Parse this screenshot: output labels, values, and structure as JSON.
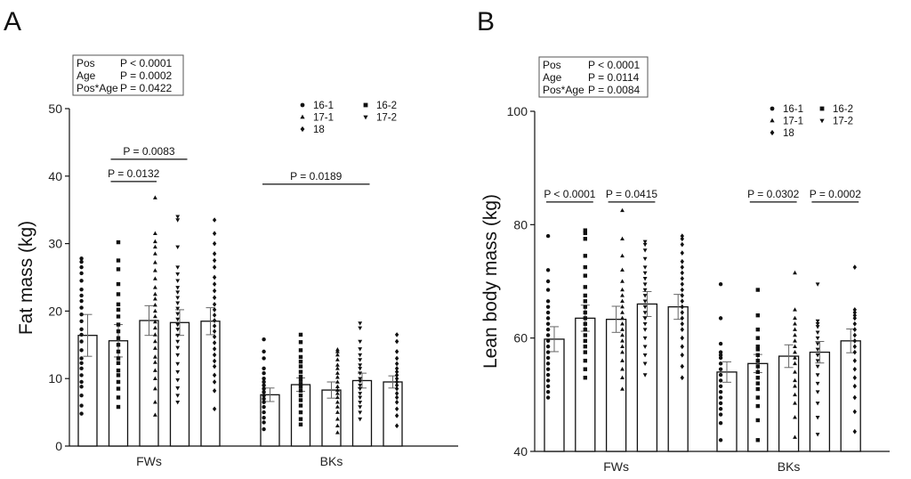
{
  "chart_data": [
    {
      "type": "bar",
      "panel_label": "A",
      "ylabel": "Fat mass (kg)",
      "ylim": [
        0,
        50
      ],
      "yticks": [
        "0",
        "10",
        "20",
        "30",
        "40",
        "50"
      ],
      "categories": [
        "FWs",
        "BKs"
      ],
      "legend": [
        "16-1",
        "16-2",
        "17-1",
        "17-2",
        "18"
      ],
      "legend_placement": "top-right",
      "stats_box": [
        {
          "label": "Pos",
          "value": "P < 0.0001"
        },
        {
          "label": "Age",
          "value": "P = 0.0002"
        },
        {
          "label": "Pos*Age",
          "value": "P = 0.0422"
        }
      ],
      "groups": [
        {
          "category": "FWs",
          "bars": [
            {
              "series": "16-1",
              "mean": 16.4,
              "sem": 3.1,
              "points": [
                4.8,
                6.0,
                7.5,
                8.8,
                9.5,
                10.5,
                11.5,
                12.3,
                13.0,
                14.2,
                15.5,
                16.5,
                17.3,
                18.5,
                19.5,
                20.5,
                21.5,
                22.3,
                23.2,
                24.5,
                25.6,
                26.5,
                27.3,
                27.8
              ]
            },
            {
              "series": "16-2",
              "mean": 15.6,
              "sem": 2.4,
              "points": [
                5.8,
                7.2,
                8.5,
                9.5,
                10.5,
                11.2,
                12.3,
                13.0,
                14.0,
                15.0,
                16.0,
                17.0,
                18.0,
                19.2,
                20.2,
                21.0,
                22.5,
                24.0,
                26.2,
                27.5,
                30.2
              ]
            },
            {
              "series": "17-1",
              "mean": 18.6,
              "sem": 2.2,
              "points": [
                4.6,
                6.5,
                8.5,
                10.0,
                11.2,
                12.4,
                13.2,
                14.5,
                15.5,
                16.5,
                17.5,
                18.4,
                19.2,
                20.0,
                20.9,
                21.8,
                22.5,
                23.5,
                24.8,
                26.0,
                27.2,
                28.5,
                29.5,
                30.3,
                31.5,
                36.8
              ]
            },
            {
              "series": "17-2",
              "mean": 18.3,
              "sem": 1.9,
              "points": [
                6.5,
                7.5,
                8.6,
                9.8,
                11.0,
                12.2,
                13.5,
                14.6,
                15.5,
                16.4,
                17.3,
                18.0,
                18.8,
                19.6,
                20.4,
                21.2,
                22.0,
                22.8,
                23.5,
                24.5,
                25.5,
                26.5,
                29.5,
                33.5,
                34.0
              ]
            },
            {
              "series": "18",
              "mean": 18.5,
              "sem": 2.0,
              "points": [
                5.5,
                8.2,
                9.5,
                10.5,
                11.8,
                12.6,
                13.5,
                14.4,
                15.3,
                16.2,
                17.0,
                17.8,
                18.6,
                19.4,
                20.2,
                21.0,
                22.0,
                23.0,
                24.0,
                25.0,
                26.5,
                27.5,
                28.5,
                30.0,
                31.5,
                33.5
              ]
            }
          ]
        },
        {
          "category": "BKs",
          "bars": [
            {
              "series": "16-1",
              "mean": 7.6,
              "sem": 1.0,
              "points": [
                2.5,
                3.5,
                4.2,
                5.0,
                5.8,
                6.5,
                7.0,
                7.5,
                8.0,
                8.5,
                9.0,
                9.5,
                10.0,
                10.8,
                11.5,
                13.0,
                14.0,
                15.8
              ]
            },
            {
              "series": "16-2",
              "mean": 9.1,
              "sem": 1.0,
              "points": [
                3.2,
                4.0,
                5.0,
                6.0,
                6.8,
                7.5,
                8.2,
                8.8,
                9.2,
                9.8,
                10.3,
                11.0,
                11.8,
                12.5,
                13.2,
                14.2,
                15.4,
                16.5
              ]
            },
            {
              "series": "17-1",
              "mean": 8.3,
              "sem": 1.2,
              "points": [
                2.0,
                3.0,
                4.0,
                5.0,
                5.8,
                6.5,
                7.2,
                7.8,
                8.3,
                8.8,
                9.5,
                10.2,
                10.8,
                11.5,
                12.0,
                12.8,
                13.5,
                14.0,
                14.3
              ]
            },
            {
              "series": "17-2",
              "mean": 9.7,
              "sem": 1.1,
              "points": [
                4.0,
                5.0,
                5.8,
                6.5,
                7.2,
                7.8,
                8.5,
                9.0,
                9.6,
                10.0,
                10.8,
                11.5,
                12.0,
                12.8,
                13.5,
                14.4,
                15.5,
                17.5,
                18.2
              ]
            },
            {
              "series": "18",
              "mean": 9.5,
              "sem": 0.9,
              "points": [
                3.0,
                4.5,
                5.5,
                6.5,
                7.2,
                7.8,
                8.5,
                9.0,
                9.5,
                10.0,
                10.5,
                11.0,
                11.5,
                12.2,
                13.0,
                14.0,
                15.5,
                16.5
              ]
            }
          ]
        }
      ],
      "comparisons": [
        {
          "category": "FWs",
          "from": 1,
          "to": 2,
          "y": 39.2,
          "label": "P = 0.0132"
        },
        {
          "category": "FWs",
          "from": 1,
          "to": 3,
          "y": 42.5,
          "label": "P = 0.0083"
        },
        {
          "category": "BKs",
          "from": 0,
          "to": 3,
          "y": 38.8,
          "label": "P = 0.0189"
        }
      ]
    },
    {
      "type": "bar",
      "panel_label": "B",
      "ylabel": "Lean body mass (kg)",
      "ylim": [
        40,
        100
      ],
      "yticks": [
        "40",
        "60",
        "80",
        "100"
      ],
      "categories": [
        "FWs",
        "BKs"
      ],
      "legend": [
        "16-1",
        "16-2",
        "17-1",
        "17-2",
        "18"
      ],
      "legend_placement": "top-right",
      "stats_box": [
        {
          "label": "Pos",
          "value": "P < 0.0001"
        },
        {
          "label": "Age",
          "value": "P = 0.0114"
        },
        {
          "label": "Pos*Age",
          "value": "P = 0.0084"
        }
      ],
      "groups": [
        {
          "category": "FWs",
          "bars": [
            {
              "series": "16-1",
              "mean": 59.8,
              "sem": 2.2,
              "points": [
                49.5,
                50.5,
                51.5,
                52.5,
                53.5,
                54.5,
                55.5,
                56.5,
                57.5,
                58.5,
                59.5,
                60.5,
                61.5,
                62.5,
                63.5,
                64.5,
                65.5,
                66.5,
                68.5,
                70.0,
                72.0,
                78.0
              ]
            },
            {
              "series": "16-2",
              "mean": 63.5,
              "sem": 2.3,
              "points": [
                53.0,
                54.5,
                56.0,
                57.5,
                58.5,
                59.5,
                60.5,
                61.5,
                62.5,
                63.5,
                64.5,
                65.5,
                66.5,
                67.5,
                69.0,
                71.0,
                72.5,
                74.5,
                77.5,
                78.5,
                79.0
              ]
            },
            {
              "series": "17-1",
              "mean": 63.3,
              "sem": 2.3,
              "points": [
                51.0,
                53.0,
                54.5,
                56.0,
                57.5,
                58.5,
                59.5,
                60.5,
                61.5,
                62.5,
                63.5,
                64.5,
                65.5,
                66.5,
                67.5,
                68.5,
                70.0,
                72.0,
                74.5,
                77.5,
                82.5
              ]
            },
            {
              "series": "17-2",
              "mean": 66.0,
              "sem": 2.2,
              "points": [
                53.5,
                55.5,
                57.0,
                58.5,
                60.0,
                61.5,
                62.5,
                63.5,
                64.5,
                65.5,
                66.5,
                67.5,
                68.5,
                69.5,
                70.5,
                71.5,
                72.5,
                74.0,
                75.5,
                76.5,
                77.0
              ]
            },
            {
              "series": "18",
              "mean": 65.5,
              "sem": 2.2,
              "points": [
                53.0,
                55.0,
                57.0,
                58.5,
                60.0,
                61.5,
                62.5,
                63.5,
                64.5,
                65.5,
                66.5,
                67.5,
                68.5,
                69.5,
                70.5,
                71.5,
                72.5,
                73.5,
                75.0,
                76.5,
                77.5,
                78.0
              ]
            }
          ]
        },
        {
          "category": "BKs",
          "bars": [
            {
              "series": "16-1",
              "mean": 54.0,
              "sem": 1.8,
              "points": [
                42.0,
                45.0,
                46.5,
                47.5,
                48.5,
                49.5,
                50.5,
                51.5,
                52.5,
                53.5,
                54.5,
                55.5,
                56.5,
                57.0,
                57.5,
                59.0,
                63.5,
                69.5
              ]
            },
            {
              "series": "16-2",
              "mean": 55.5,
              "sem": 1.6,
              "points": [
                42.0,
                45.5,
                48.0,
                49.5,
                51.0,
                52.0,
                53.0,
                54.0,
                55.0,
                56.0,
                57.0,
                58.0,
                58.5,
                60.0,
                61.5,
                64.0,
                68.5
              ]
            },
            {
              "series": "17-1",
              "mean": 56.8,
              "sem": 2.0,
              "points": [
                42.5,
                46.0,
                48.5,
                50.0,
                51.5,
                52.5,
                54.0,
                55.5,
                56.5,
                57.5,
                58.5,
                59.5,
                60.5,
                61.5,
                62.5,
                63.5,
                65.0,
                71.5
              ]
            },
            {
              "series": "17-2",
              "mean": 57.5,
              "sem": 1.9,
              "points": [
                43.0,
                46.0,
                48.5,
                50.5,
                52.0,
                53.5,
                55.0,
                56.0,
                57.0,
                58.0,
                59.0,
                60.0,
                61.0,
                62.0,
                62.5,
                63.0,
                69.5
              ]
            },
            {
              "series": "18",
              "mean": 59.5,
              "sem": 2.1,
              "points": [
                43.5,
                47.0,
                49.5,
                51.5,
                53.0,
                54.5,
                56.0,
                57.5,
                58.5,
                59.5,
                60.5,
                61.5,
                62.5,
                63.5,
                64.0,
                64.5,
                65.0,
                72.5
              ]
            }
          ]
        }
      ],
      "comparisons": [
        {
          "category": "FWs",
          "from": 0,
          "to": 1,
          "y": 84.0,
          "label": "P < 0.0001"
        },
        {
          "category": "FWs",
          "from": 2,
          "to": 3,
          "y": 84.0,
          "label": "P = 0.0415"
        },
        {
          "category": "BKs",
          "from": 1,
          "to": 2,
          "y": 84.0,
          "label": "P = 0.0302"
        },
        {
          "category": "BKs",
          "from": 3,
          "to": 4,
          "y": 84.0,
          "label": "P = 0.0002"
        }
      ]
    }
  ]
}
